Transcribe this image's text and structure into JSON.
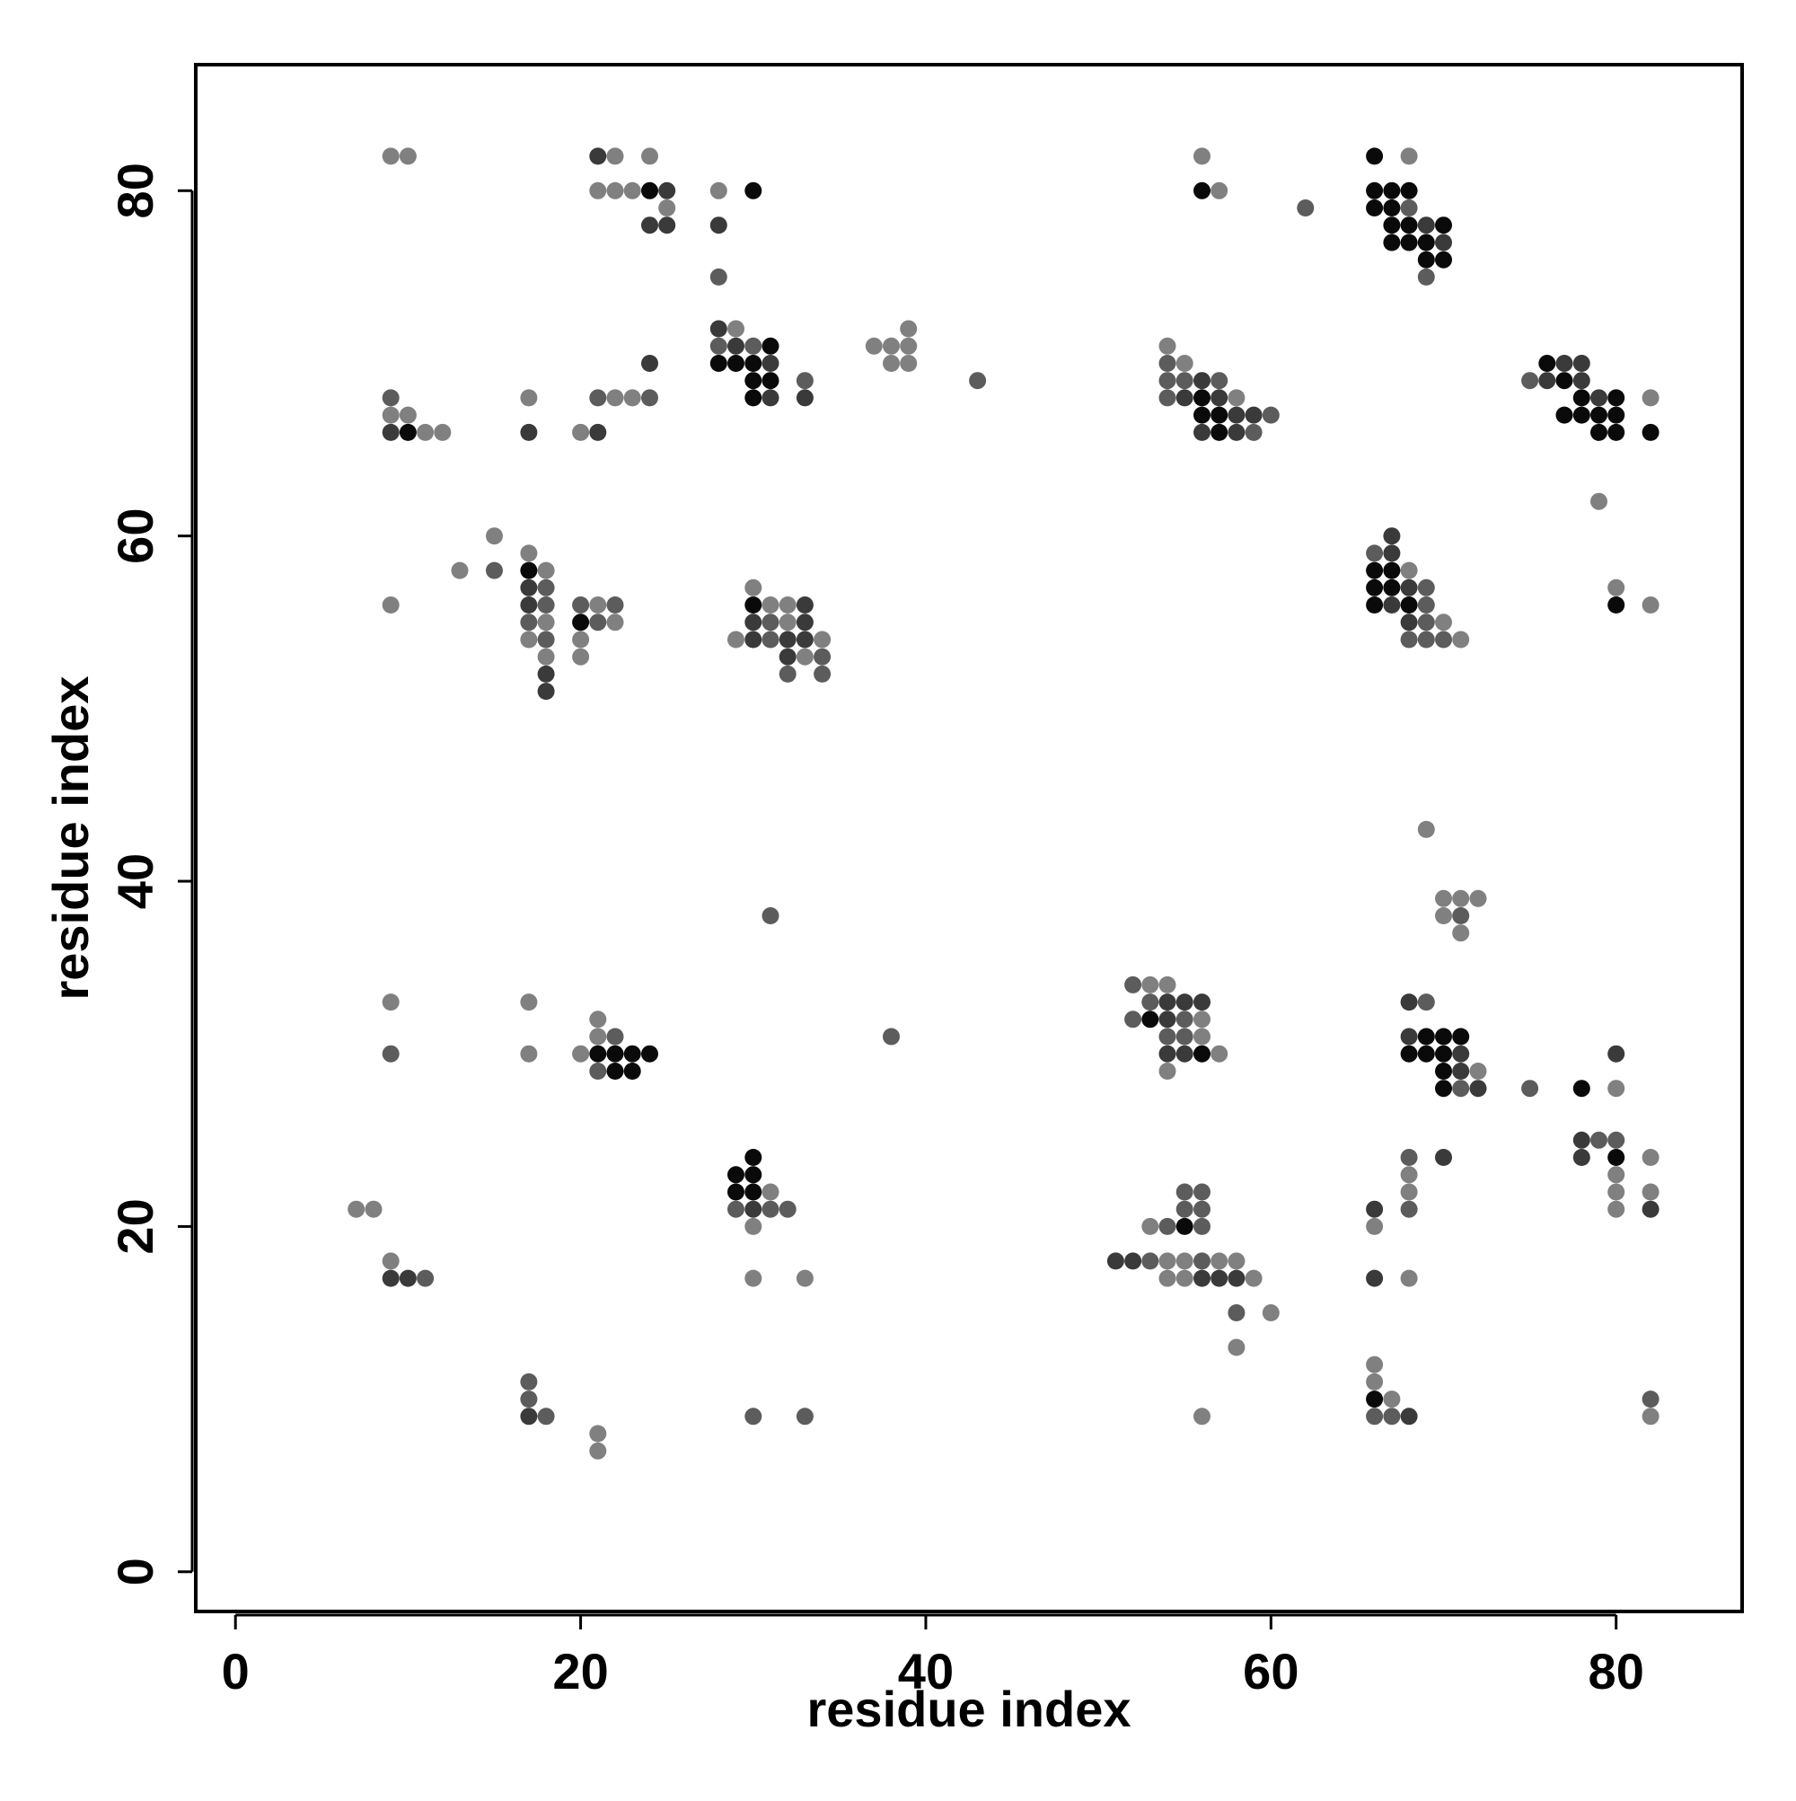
{
  "chart_data": {
    "type": "scatter",
    "title": "",
    "xlabel": "residue index",
    "ylabel": "residue index",
    "xlim": [
      -2.3,
      87.3
    ],
    "ylim": [
      -2.3,
      87.3
    ],
    "x_ticks": [
      0,
      20,
      40,
      60,
      80
    ],
    "y_ticks": [
      0,
      20,
      40,
      60,
      80
    ],
    "x_tick_labels": [
      "0",
      "20",
      "40",
      "60",
      "80"
    ],
    "y_tick_labels": [
      "0",
      "20",
      "40",
      "60",
      "80"
    ],
    "grid": false,
    "legend": "none",
    "shade_colors": {
      "1": "#0a0a0a",
      "2": "#3a3a3a",
      "3": "#5c5c5c",
      "4": "#808080"
    },
    "points": [
      [
        9,
        82,
        4
      ],
      [
        10,
        82,
        4
      ],
      [
        21,
        82,
        2
      ],
      [
        22,
        82,
        4
      ],
      [
        24,
        82,
        4
      ],
      [
        56,
        82,
        4
      ],
      [
        66,
        82,
        1
      ],
      [
        68,
        82,
        4
      ],
      [
        21,
        80,
        4
      ],
      [
        22,
        80,
        4
      ],
      [
        23,
        80,
        4
      ],
      [
        24,
        80,
        1
      ],
      [
        25,
        80,
        2
      ],
      [
        28,
        80,
        4
      ],
      [
        30,
        80,
        1
      ],
      [
        56,
        80,
        1
      ],
      [
        57,
        80,
        4
      ],
      [
        66,
        80,
        1
      ],
      [
        67,
        80,
        1
      ],
      [
        68,
        80,
        1
      ],
      [
        25,
        79,
        4
      ],
      [
        62,
        79,
        3
      ],
      [
        66,
        79,
        1
      ],
      [
        67,
        79,
        1
      ],
      [
        68,
        79,
        3
      ],
      [
        24,
        78,
        2
      ],
      [
        25,
        78,
        2
      ],
      [
        28,
        78,
        2
      ],
      [
        67,
        78,
        1
      ],
      [
        68,
        78,
        1
      ],
      [
        69,
        78,
        2
      ],
      [
        70,
        78,
        1
      ],
      [
        67,
        77,
        1
      ],
      [
        68,
        77,
        1
      ],
      [
        69,
        77,
        1
      ],
      [
        70,
        77,
        2
      ],
      [
        69,
        76,
        1
      ],
      [
        70,
        76,
        1
      ],
      [
        28,
        75,
        3
      ],
      [
        69,
        75,
        3
      ],
      [
        28,
        72,
        2
      ],
      [
        29,
        72,
        4
      ],
      [
        39,
        72,
        4
      ],
      [
        28,
        71,
        3
      ],
      [
        29,
        71,
        2
      ],
      [
        30,
        71,
        3
      ],
      [
        31,
        71,
        1
      ],
      [
        37,
        71,
        4
      ],
      [
        38,
        71,
        4
      ],
      [
        39,
        71,
        4
      ],
      [
        54,
        71,
        4
      ],
      [
        24,
        70,
        2
      ],
      [
        28,
        70,
        1
      ],
      [
        29,
        70,
        1
      ],
      [
        30,
        70,
        1
      ],
      [
        31,
        70,
        2
      ],
      [
        38,
        70,
        4
      ],
      [
        39,
        70,
        4
      ],
      [
        54,
        70,
        3
      ],
      [
        55,
        70,
        4
      ],
      [
        76,
        70,
        1
      ],
      [
        77,
        70,
        2
      ],
      [
        78,
        70,
        2
      ],
      [
        30,
        69,
        1
      ],
      [
        31,
        69,
        1
      ],
      [
        33,
        69,
        3
      ],
      [
        43,
        69,
        3
      ],
      [
        54,
        69,
        3
      ],
      [
        55,
        69,
        3
      ],
      [
        56,
        69,
        2
      ],
      [
        57,
        69,
        3
      ],
      [
        75,
        69,
        3
      ],
      [
        76,
        69,
        2
      ],
      [
        77,
        69,
        1
      ],
      [
        78,
        69,
        2
      ],
      [
        9,
        68,
        3
      ],
      [
        17,
        68,
        4
      ],
      [
        21,
        68,
        3
      ],
      [
        22,
        68,
        4
      ],
      [
        23,
        68,
        4
      ],
      [
        24,
        68,
        3
      ],
      [
        30,
        68,
        1
      ],
      [
        31,
        68,
        2
      ],
      [
        33,
        68,
        2
      ],
      [
        54,
        68,
        3
      ],
      [
        55,
        68,
        2
      ],
      [
        56,
        68,
        1
      ],
      [
        57,
        68,
        2
      ],
      [
        58,
        68,
        4
      ],
      [
        78,
        68,
        1
      ],
      [
        79,
        68,
        2
      ],
      [
        80,
        68,
        1
      ],
      [
        82,
        68,
        4
      ],
      [
        9,
        67,
        4
      ],
      [
        10,
        67,
        4
      ],
      [
        56,
        67,
        1
      ],
      [
        57,
        67,
        1
      ],
      [
        58,
        67,
        2
      ],
      [
        59,
        67,
        2
      ],
      [
        60,
        67,
        3
      ],
      [
        77,
        67,
        1
      ],
      [
        78,
        67,
        1
      ],
      [
        79,
        67,
        1
      ],
      [
        80,
        67,
        1
      ],
      [
        9,
        66,
        2
      ],
      [
        10,
        66,
        1
      ],
      [
        11,
        66,
        4
      ],
      [
        12,
        66,
        4
      ],
      [
        17,
        66,
        2
      ],
      [
        20,
        66,
        4
      ],
      [
        21,
        66,
        2
      ],
      [
        56,
        66,
        2
      ],
      [
        57,
        66,
        1
      ],
      [
        58,
        66,
        2
      ],
      [
        59,
        66,
        3
      ],
      [
        79,
        66,
        1
      ],
      [
        80,
        66,
        1
      ],
      [
        82,
        66,
        1
      ],
      [
        79,
        62,
        4
      ],
      [
        15,
        60,
        4
      ],
      [
        67,
        60,
        2
      ],
      [
        17,
        59,
        4
      ],
      [
        66,
        59,
        3
      ],
      [
        67,
        59,
        2
      ],
      [
        13,
        58,
        4
      ],
      [
        15,
        58,
        3
      ],
      [
        17,
        58,
        1
      ],
      [
        18,
        58,
        4
      ],
      [
        66,
        58,
        1
      ],
      [
        67,
        58,
        1
      ],
      [
        68,
        58,
        4
      ],
      [
        17,
        57,
        2
      ],
      [
        18,
        57,
        3
      ],
      [
        30,
        57,
        4
      ],
      [
        66,
        57,
        1
      ],
      [
        67,
        57,
        1
      ],
      [
        68,
        57,
        2
      ],
      [
        69,
        57,
        3
      ],
      [
        80,
        57,
        4
      ],
      [
        9,
        56,
        4
      ],
      [
        17,
        56,
        2
      ],
      [
        18,
        56,
        3
      ],
      [
        20,
        56,
        3
      ],
      [
        21,
        56,
        4
      ],
      [
        22,
        56,
        3
      ],
      [
        30,
        56,
        1
      ],
      [
        31,
        56,
        4
      ],
      [
        32,
        56,
        4
      ],
      [
        33,
        56,
        2
      ],
      [
        66,
        56,
        1
      ],
      [
        67,
        56,
        2
      ],
      [
        68,
        56,
        1
      ],
      [
        69,
        56,
        3
      ],
      [
        80,
        56,
        1
      ],
      [
        82,
        56,
        4
      ],
      [
        17,
        55,
        3
      ],
      [
        18,
        55,
        4
      ],
      [
        20,
        55,
        1
      ],
      [
        21,
        55,
        3
      ],
      [
        22,
        55,
        4
      ],
      [
        30,
        55,
        2
      ],
      [
        31,
        55,
        3
      ],
      [
        32,
        55,
        4
      ],
      [
        33,
        55,
        2
      ],
      [
        68,
        55,
        2
      ],
      [
        69,
        55,
        3
      ],
      [
        70,
        55,
        4
      ],
      [
        17,
        54,
        4
      ],
      [
        18,
        54,
        3
      ],
      [
        20,
        54,
        4
      ],
      [
        29,
        54,
        4
      ],
      [
        30,
        54,
        2
      ],
      [
        31,
        54,
        3
      ],
      [
        32,
        54,
        2
      ],
      [
        33,
        54,
        2
      ],
      [
        34,
        54,
        4
      ],
      [
        68,
        54,
        3
      ],
      [
        69,
        54,
        3
      ],
      [
        70,
        54,
        3
      ],
      [
        71,
        54,
        4
      ],
      [
        18,
        53,
        4
      ],
      [
        20,
        53,
        4
      ],
      [
        32,
        53,
        2
      ],
      [
        33,
        53,
        4
      ],
      [
        34,
        53,
        3
      ],
      [
        18,
        52,
        2
      ],
      [
        32,
        52,
        3
      ],
      [
        34,
        52,
        3
      ],
      [
        18,
        51,
        2
      ],
      [
        69,
        43,
        4
      ],
      [
        70,
        39,
        4
      ],
      [
        71,
        39,
        4
      ],
      [
        72,
        39,
        4
      ],
      [
        70,
        38,
        4
      ],
      [
        71,
        38,
        3
      ],
      [
        31,
        38,
        3
      ],
      [
        71,
        37,
        4
      ],
      [
        52,
        34,
        3
      ],
      [
        53,
        34,
        4
      ],
      [
        54,
        34,
        4
      ],
      [
        9,
        33,
        4
      ],
      [
        17,
        33,
        4
      ],
      [
        53,
        33,
        3
      ],
      [
        54,
        33,
        2
      ],
      [
        55,
        33,
        2
      ],
      [
        56,
        33,
        2
      ],
      [
        68,
        33,
        2
      ],
      [
        69,
        33,
        3
      ],
      [
        21,
        32,
        4
      ],
      [
        52,
        32,
        3
      ],
      [
        53,
        32,
        1
      ],
      [
        54,
        32,
        2
      ],
      [
        55,
        32,
        3
      ],
      [
        56,
        32,
        4
      ],
      [
        21,
        31,
        4
      ],
      [
        22,
        31,
        3
      ],
      [
        38,
        31,
        3
      ],
      [
        54,
        31,
        3
      ],
      [
        55,
        31,
        3
      ],
      [
        56,
        31,
        4
      ],
      [
        68,
        31,
        2
      ],
      [
        69,
        31,
        1
      ],
      [
        70,
        31,
        1
      ],
      [
        71,
        31,
        1
      ],
      [
        9,
        30,
        3
      ],
      [
        17,
        30,
        4
      ],
      [
        20,
        30,
        4
      ],
      [
        21,
        30,
        1
      ],
      [
        22,
        30,
        1
      ],
      [
        23,
        30,
        1
      ],
      [
        24,
        30,
        1
      ],
      [
        54,
        30,
        2
      ],
      [
        55,
        30,
        2
      ],
      [
        56,
        30,
        1
      ],
      [
        57,
        30,
        4
      ],
      [
        68,
        30,
        1
      ],
      [
        69,
        30,
        1
      ],
      [
        70,
        30,
        1
      ],
      [
        71,
        30,
        2
      ],
      [
        80,
        30,
        2
      ],
      [
        21,
        29,
        3
      ],
      [
        22,
        29,
        1
      ],
      [
        23,
        29,
        1
      ],
      [
        54,
        29,
        4
      ],
      [
        70,
        29,
        1
      ],
      [
        71,
        29,
        2
      ],
      [
        72,
        29,
        4
      ],
      [
        70,
        28,
        1
      ],
      [
        71,
        28,
        3
      ],
      [
        72,
        28,
        2
      ],
      [
        75,
        28,
        3
      ],
      [
        78,
        28,
        1
      ],
      [
        80,
        28,
        4
      ],
      [
        78,
        25,
        2
      ],
      [
        79,
        25,
        3
      ],
      [
        80,
        25,
        3
      ],
      [
        30,
        24,
        1
      ],
      [
        68,
        24,
        3
      ],
      [
        70,
        24,
        2
      ],
      [
        78,
        24,
        2
      ],
      [
        80,
        24,
        1
      ],
      [
        82,
        24,
        4
      ],
      [
        29,
        23,
        1
      ],
      [
        30,
        23,
        1
      ],
      [
        68,
        23,
        4
      ],
      [
        80,
        23,
        4
      ],
      [
        29,
        22,
        1
      ],
      [
        30,
        22,
        1
      ],
      [
        31,
        22,
        4
      ],
      [
        55,
        22,
        3
      ],
      [
        56,
        22,
        3
      ],
      [
        68,
        22,
        4
      ],
      [
        80,
        22,
        4
      ],
      [
        82,
        22,
        4
      ],
      [
        7,
        21,
        4
      ],
      [
        8,
        21,
        4
      ],
      [
        29,
        21,
        3
      ],
      [
        30,
        21,
        2
      ],
      [
        31,
        21,
        3
      ],
      [
        32,
        21,
        3
      ],
      [
        55,
        21,
        3
      ],
      [
        56,
        21,
        3
      ],
      [
        66,
        21,
        2
      ],
      [
        68,
        21,
        3
      ],
      [
        80,
        21,
        4
      ],
      [
        82,
        21,
        2
      ],
      [
        30,
        20,
        4
      ],
      [
        53,
        20,
        4
      ],
      [
        54,
        20,
        3
      ],
      [
        55,
        20,
        1
      ],
      [
        56,
        20,
        3
      ],
      [
        66,
        20,
        4
      ],
      [
        9,
        18,
        4
      ],
      [
        51,
        18,
        2
      ],
      [
        52,
        18,
        2
      ],
      [
        53,
        18,
        3
      ],
      [
        54,
        18,
        4
      ],
      [
        55,
        18,
        4
      ],
      [
        56,
        18,
        3
      ],
      [
        57,
        18,
        4
      ],
      [
        58,
        18,
        4
      ],
      [
        9,
        17,
        2
      ],
      [
        10,
        17,
        2
      ],
      [
        11,
        17,
        3
      ],
      [
        30,
        17,
        4
      ],
      [
        33,
        17,
        4
      ],
      [
        54,
        17,
        4
      ],
      [
        55,
        17,
        4
      ],
      [
        56,
        17,
        2
      ],
      [
        57,
        17,
        2
      ],
      [
        58,
        17,
        2
      ],
      [
        59,
        17,
        4
      ],
      [
        66,
        17,
        2
      ],
      [
        68,
        17,
        4
      ],
      [
        58,
        15,
        3
      ],
      [
        60,
        15,
        4
      ],
      [
        58,
        13,
        4
      ],
      [
        66,
        12,
        4
      ],
      [
        17,
        11,
        3
      ],
      [
        66,
        11,
        4
      ],
      [
        17,
        10,
        3
      ],
      [
        66,
        10,
        1
      ],
      [
        67,
        10,
        4
      ],
      [
        82,
        10,
        3
      ],
      [
        17,
        9,
        2
      ],
      [
        18,
        9,
        3
      ],
      [
        30,
        9,
        3
      ],
      [
        33,
        9,
        3
      ],
      [
        56,
        9,
        4
      ],
      [
        66,
        9,
        3
      ],
      [
        67,
        9,
        3
      ],
      [
        68,
        9,
        2
      ],
      [
        82,
        9,
        4
      ],
      [
        21,
        8,
        4
      ],
      [
        21,
        7,
        4
      ]
    ]
  }
}
